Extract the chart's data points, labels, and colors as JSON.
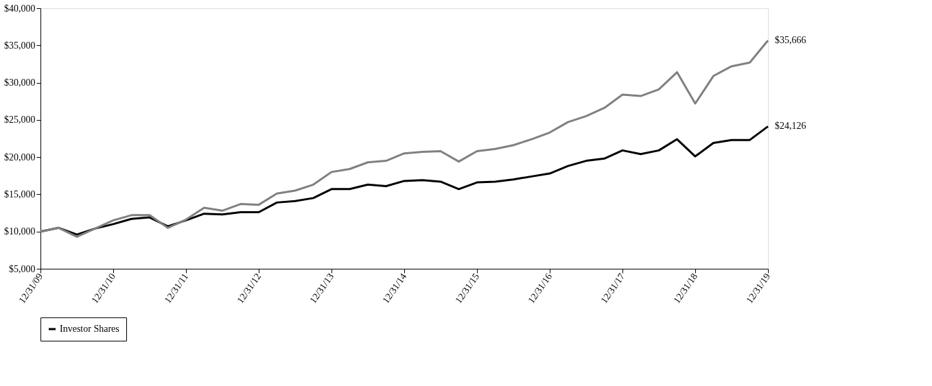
{
  "chart_data": {
    "type": "line",
    "categories": [
      "12/31/09",
      null,
      null,
      null,
      "12/31/10",
      null,
      null,
      null,
      "12/31/11",
      null,
      null,
      null,
      "12/31/12",
      null,
      null,
      null,
      "12/31/13",
      null,
      null,
      null,
      "12/31/14",
      null,
      null,
      null,
      "12/31/15",
      null,
      null,
      null,
      "12/31/16",
      null,
      null,
      null,
      "12/31/17",
      null,
      null,
      null,
      "12/31/18",
      null,
      null,
      null,
      "12/31/19"
    ],
    "series": [
      {
        "name": "Investor Shares",
        "color": "#000000",
        "values": [
          10000,
          10500,
          9600,
          10400,
          11000,
          11700,
          11900,
          10700,
          11500,
          12400,
          12300,
          12600,
          12600,
          13900,
          14100,
          14500,
          15700,
          15700,
          16300,
          16100,
          16800,
          16900,
          16700,
          15700,
          16600,
          16700,
          17000,
          17400,
          17800,
          18800,
          19500,
          19800,
          20900,
          20400,
          20900,
          22400,
          20100,
          21900,
          22300,
          22300,
          24126
        ]
      },
      {
        "color": "#808080",
        "values": [
          10000,
          10500,
          9300,
          10400,
          11500,
          12200,
          12200,
          10500,
          11600,
          13200,
          12800,
          13700,
          13600,
          15100,
          15500,
          16300,
          18000,
          18400,
          19300,
          19500,
          20500,
          20700,
          20800,
          19400,
          20800,
          21100,
          21600,
          22400,
          23300,
          24700,
          25500,
          26600,
          28400,
          28200,
          29100,
          31400,
          27200,
          30900,
          32200,
          32700,
          35666
        ]
      }
    ],
    "ylim": [
      5000,
      40000
    ],
    "yticks": [
      {
        "value": 5000,
        "label": "$5,000"
      },
      {
        "value": 10000,
        "label": "$10,000"
      },
      {
        "value": 15000,
        "label": "$15,000"
      },
      {
        "value": 20000,
        "label": "$20,000"
      },
      {
        "value": 25000,
        "label": "$25,000"
      },
      {
        "value": 30000,
        "label": "$30,000"
      },
      {
        "value": 35000,
        "label": "$35,000"
      },
      {
        "value": 40000,
        "label": "$40,000"
      }
    ],
    "annotations": [
      {
        "text": "$35,666",
        "x": "12/31/19",
        "y": 35666
      },
      {
        "text": "$24,126",
        "x": "12/31/19",
        "y": 24126
      }
    ],
    "legend": "bottom",
    "grid": false,
    "marker": "none",
    "line_style": "solid"
  }
}
